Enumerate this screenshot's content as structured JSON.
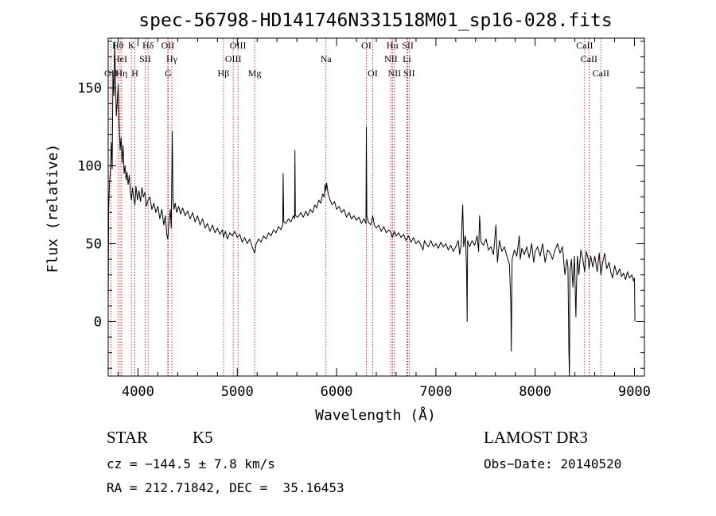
{
  "chart_data": {
    "type": "line",
    "title": "spec-56798-HD141746N331518M01_sp16-028.fits",
    "xlabel": "Wavelength (Å)",
    "ylabel": "Flux (relative)",
    "xlim": [
      3700,
      9100
    ],
    "ylim": [
      -35,
      182
    ],
    "xticks": [
      4000,
      5000,
      6000,
      7000,
      8000,
      9000
    ],
    "yticks": [
      0,
      50,
      100,
      150
    ],
    "grid": false,
    "colors": {
      "series": "#000000",
      "line_markers": "#cc0000"
    },
    "line_markers": [
      {
        "label": "OII",
        "x": 3727,
        "row": 2
      },
      {
        "label": "Hθ",
        "x": 3798,
        "row": 0
      },
      {
        "label": "HeI",
        "x": 3820,
        "row": 1
      },
      {
        "label": "Hη",
        "x": 3835,
        "row": 2
      },
      {
        "label": "K",
        "x": 3934,
        "row": 0
      },
      {
        "label": "H",
        "x": 3969,
        "row": 2
      },
      {
        "label": "Hδ",
        "x": 4102,
        "row": 0
      },
      {
        "label": "SII",
        "x": 4072,
        "row": 1
      },
      {
        "label": "OII",
        "x": 4300,
        "row": 0
      },
      {
        "label": "Hγ",
        "x": 4341,
        "row": 1
      },
      {
        "label": "G",
        "x": 4305,
        "row": 2
      },
      {
        "label": "Hβ",
        "x": 4861,
        "row": 2
      },
      {
        "label": "OIII",
        "x": 4959,
        "row": 1
      },
      {
        "label": "OIII",
        "x": 5007,
        "row": 0
      },
      {
        "label": "Mg",
        "x": 5175,
        "row": 2
      },
      {
        "label": "Na",
        "x": 5893,
        "row": 1
      },
      {
        "label": "OI",
        "x": 6300,
        "row": 0
      },
      {
        "label": "OI",
        "x": 6364,
        "row": 2
      },
      {
        "label": "Hα",
        "x": 6563,
        "row": 0
      },
      {
        "label": "NII",
        "x": 6548,
        "row": 1
      },
      {
        "label": "NII",
        "x": 6583,
        "row": 2
      },
      {
        "label": "SII",
        "x": 6717,
        "row": 0
      },
      {
        "label": "Li",
        "x": 6708,
        "row": 1
      },
      {
        "label": "SII",
        "x": 6731,
        "row": 2
      },
      {
        "label": "CaII",
        "x": 8498,
        "row": 0
      },
      {
        "label": "CaII",
        "x": 8542,
        "row": 1
      },
      {
        "label": "CaII",
        "x": 8662,
        "row": 2
      }
    ],
    "series": [
      {
        "points": [
          [
            3700,
            12
          ],
          [
            3705,
            72
          ],
          [
            3712,
            88
          ],
          [
            3722,
            96
          ],
          [
            3732,
            115
          ],
          [
            3740,
            98
          ],
          [
            3748,
            160
          ],
          [
            3758,
            145
          ],
          [
            3766,
            180
          ],
          [
            3775,
            150
          ],
          [
            3782,
            132
          ],
          [
            3792,
            142
          ],
          [
            3800,
            152
          ],
          [
            3810,
            128
          ],
          [
            3820,
            110
          ],
          [
            3830,
            118
          ],
          [
            3840,
            102
          ],
          [
            3850,
            113
          ],
          [
            3860,
            95
          ],
          [
            3870,
            100
          ],
          [
            3880,
            91
          ],
          [
            3890,
            96
          ],
          [
            3900,
            88
          ],
          [
            3912,
            94
          ],
          [
            3925,
            82
          ],
          [
            3934,
            78
          ],
          [
            3945,
            86
          ],
          [
            3955,
            80
          ],
          [
            3969,
            75
          ],
          [
            3980,
            87
          ],
          [
            3995,
            78
          ],
          [
            4010,
            84
          ],
          [
            4025,
            77
          ],
          [
            4040,
            86
          ],
          [
            4055,
            80
          ],
          [
            4070,
            83
          ],
          [
            4085,
            74
          ],
          [
            4102,
            78
          ],
          [
            4120,
            80
          ],
          [
            4140,
            72
          ],
          [
            4160,
            76
          ],
          [
            4180,
            70
          ],
          [
            4200,
            74
          ],
          [
            4220,
            66
          ],
          [
            4240,
            72
          ],
          [
            4260,
            62
          ],
          [
            4275,
            68
          ],
          [
            4290,
            56
          ],
          [
            4300,
            53
          ],
          [
            4312,
            63
          ],
          [
            4325,
            72
          ],
          [
            4335,
            60
          ],
          [
            4345,
            122
          ],
          [
            4352,
            80
          ],
          [
            4362,
            72
          ],
          [
            4375,
            76
          ],
          [
            4390,
            70
          ],
          [
            4410,
            74
          ],
          [
            4430,
            69
          ],
          [
            4450,
            73
          ],
          [
            4475,
            68
          ],
          [
            4500,
            71
          ],
          [
            4525,
            66
          ],
          [
            4550,
            70
          ],
          [
            4575,
            64
          ],
          [
            4600,
            68
          ],
          [
            4625,
            62
          ],
          [
            4650,
            66
          ],
          [
            4675,
            60
          ],
          [
            4700,
            63
          ],
          [
            4725,
            58
          ],
          [
            4750,
            62
          ],
          [
            4775,
            57
          ],
          [
            4800,
            60
          ],
          [
            4825,
            56
          ],
          [
            4850,
            59
          ],
          [
            4861,
            54
          ],
          [
            4880,
            58
          ],
          [
            4900,
            53
          ],
          [
            4925,
            57
          ],
          [
            4950,
            55
          ],
          [
            4975,
            58
          ],
          [
            5000,
            54
          ],
          [
            5025,
            56
          ],
          [
            5050,
            51
          ],
          [
            5075,
            54
          ],
          [
            5100,
            50
          ],
          [
            5125,
            53
          ],
          [
            5150,
            48
          ],
          [
            5175,
            44
          ],
          [
            5190,
            50
          ],
          [
            5215,
            53
          ],
          [
            5240,
            51
          ],
          [
            5265,
            55
          ],
          [
            5290,
            53
          ],
          [
            5315,
            57
          ],
          [
            5340,
            55
          ],
          [
            5365,
            59
          ],
          [
            5390,
            57
          ],
          [
            5415,
            61
          ],
          [
            5440,
            59
          ],
          [
            5458,
            62
          ],
          [
            5462,
            95
          ],
          [
            5468,
            64
          ],
          [
            5490,
            63
          ],
          [
            5515,
            66
          ],
          [
            5540,
            64
          ],
          [
            5565,
            68
          ],
          [
            5577,
            66
          ],
          [
            5580,
            110
          ],
          [
            5585,
            68
          ],
          [
            5610,
            67
          ],
          [
            5640,
            70
          ],
          [
            5665,
            67
          ],
          [
            5690,
            71
          ],
          [
            5710,
            68
          ],
          [
            5735,
            72
          ],
          [
            5760,
            70
          ],
          [
            5780,
            75
          ],
          [
            5800,
            73
          ],
          [
            5820,
            78
          ],
          [
            5840,
            76
          ],
          [
            5860,
            82
          ],
          [
            5875,
            80
          ],
          [
            5885,
            88
          ],
          [
            5893,
            84
          ],
          [
            5900,
            89
          ],
          [
            5915,
            82
          ],
          [
            5935,
            78
          ],
          [
            5955,
            75
          ],
          [
            5980,
            77
          ],
          [
            6000,
            72
          ],
          [
            6025,
            74
          ],
          [
            6050,
            70
          ],
          [
            6075,
            72
          ],
          [
            6100,
            67
          ],
          [
            6125,
            70
          ],
          [
            6150,
            66
          ],
          [
            6175,
            68
          ],
          [
            6200,
            65
          ],
          [
            6225,
            67
          ],
          [
            6250,
            63
          ],
          [
            6275,
            66
          ],
          [
            6296,
            63
          ],
          [
            6300,
            125
          ],
          [
            6305,
            68
          ],
          [
            6320,
            64
          ],
          [
            6345,
            62
          ],
          [
            6364,
            68
          ],
          [
            6380,
            62
          ],
          [
            6400,
            60
          ],
          [
            6425,
            62
          ],
          [
            6450,
            58
          ],
          [
            6475,
            61
          ],
          [
            6500,
            57
          ],
          [
            6525,
            59
          ],
          [
            6548,
            57
          ],
          [
            6563,
            54
          ],
          [
            6580,
            58
          ],
          [
            6600,
            55
          ],
          [
            6625,
            57
          ],
          [
            6650,
            54
          ],
          [
            6675,
            56
          ],
          [
            6700,
            52
          ],
          [
            6725,
            55
          ],
          [
            6750,
            51
          ],
          [
            6775,
            54
          ],
          [
            6800,
            50
          ],
          [
            6825,
            52
          ],
          [
            6850,
            49
          ],
          [
            6870,
            46
          ],
          [
            6885,
            52
          ],
          [
            6900,
            50
          ],
          [
            6925,
            48
          ],
          [
            6950,
            52
          ],
          [
            6975,
            48
          ],
          [
            7000,
            50
          ],
          [
            7025,
            47
          ],
          [
            7050,
            51
          ],
          [
            7075,
            48
          ],
          [
            7100,
            50
          ],
          [
            7125,
            46
          ],
          [
            7150,
            49
          ],
          [
            7175,
            45
          ],
          [
            7200,
            48
          ],
          [
            7225,
            52
          ],
          [
            7240,
            43
          ],
          [
            7255,
            49
          ],
          [
            7270,
            75
          ],
          [
            7280,
            48
          ],
          [
            7295,
            55
          ],
          [
            7300,
            53
          ],
          [
            7310,
            30
          ],
          [
            7315,
            0
          ],
          [
            7320,
            52
          ],
          [
            7340,
            48
          ],
          [
            7365,
            52
          ],
          [
            7390,
            49
          ],
          [
            7415,
            55
          ],
          [
            7430,
            45
          ],
          [
            7440,
            68
          ],
          [
            7455,
            51
          ],
          [
            7480,
            49
          ],
          [
            7505,
            53
          ],
          [
            7530,
            46
          ],
          [
            7555,
            48
          ],
          [
            7580,
            43
          ],
          [
            7605,
            62
          ],
          [
            7620,
            38
          ],
          [
            7640,
            52
          ],
          [
            7665,
            45
          ],
          [
            7690,
            48
          ],
          [
            7715,
            42
          ],
          [
            7740,
            37
          ],
          [
            7755,
            12
          ],
          [
            7760,
            -19
          ],
          [
            7768,
            40
          ],
          [
            7790,
            46
          ],
          [
            7815,
            42
          ],
          [
            7840,
            55
          ],
          [
            7850,
            40
          ],
          [
            7865,
            47
          ],
          [
            7890,
            43
          ],
          [
            7915,
            48
          ],
          [
            7940,
            41
          ],
          [
            7965,
            50
          ],
          [
            7985,
            38
          ],
          [
            8000,
            45
          ],
          [
            8025,
            48
          ],
          [
            8050,
            42
          ],
          [
            8075,
            50
          ],
          [
            8100,
            38
          ],
          [
            8125,
            46
          ],
          [
            8150,
            44
          ],
          [
            8175,
            40
          ],
          [
            8200,
            46
          ],
          [
            8225,
            50
          ],
          [
            8250,
            44
          ],
          [
            8275,
            48
          ],
          [
            8300,
            30
          ],
          [
            8320,
            40
          ],
          [
            8330,
            35
          ],
          [
            8340,
            -20
          ],
          [
            8345,
            -35
          ],
          [
            8350,
            32
          ],
          [
            8365,
            40
          ],
          [
            8380,
            22
          ],
          [
            8395,
            42
          ],
          [
            8410,
            3
          ],
          [
            8415,
            20
          ],
          [
            8425,
            42
          ],
          [
            8440,
            30
          ],
          [
            8460,
            46
          ],
          [
            8480,
            40
          ],
          [
            8498,
            32
          ],
          [
            8515,
            45
          ],
          [
            8535,
            40
          ],
          [
            8542,
            34
          ],
          [
            8560,
            42
          ],
          [
            8580,
            35
          ],
          [
            8600,
            42
          ],
          [
            8625,
            32
          ],
          [
            8645,
            44
          ],
          [
            8662,
            30
          ],
          [
            8680,
            38
          ],
          [
            8700,
            44
          ],
          [
            8720,
            34
          ],
          [
            8745,
            38
          ],
          [
            8760,
            32
          ],
          [
            8780,
            28
          ],
          [
            8800,
            36
          ],
          [
            8825,
            30
          ],
          [
            8850,
            34
          ],
          [
            8870,
            29
          ],
          [
            8890,
            31
          ],
          [
            8910,
            27
          ],
          [
            8930,
            32
          ],
          [
            8950,
            28
          ],
          [
            8975,
            30
          ],
          [
            8990,
            26
          ],
          [
            9000,
            28
          ],
          [
            9005,
            0
          ]
        ]
      }
    ]
  },
  "info": {
    "object_type": "STAR",
    "spectral_class": "K5",
    "survey": "LAMOST DR3",
    "redshift": "cz = −144.5 ± 7.8 km/s",
    "obs_date": "Obs−Date: 20140520",
    "coords": "RA = 212.71842, DEC =  35.16453"
  }
}
